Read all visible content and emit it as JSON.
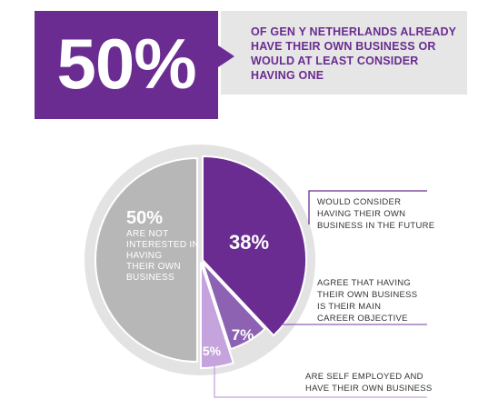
{
  "headline": {
    "big_value": "50%",
    "lines": [
      "OF GEN Y NETHERLANDS ALREADY",
      "HAVE THEIR OWN BUSINESS OR",
      "WOULD AT LEAST CONSIDER",
      "HAVING ONE"
    ]
  },
  "colors": {
    "purple_dark": "#6a2c91",
    "purple_mid": "#8d62b3",
    "purple_light": "#c5a3dc",
    "grey_slice": "#b7b7b7",
    "grey_ring": "#e3e3e3",
    "banner_grey": "#e6e6e6"
  },
  "chart_data": {
    "type": "pie",
    "title": "",
    "slices": [
      {
        "value": 50,
        "label": "50%",
        "description_lines": [
          "ARE NOT",
          "INTERESTED IN",
          "HAVING",
          "THEIR OWN",
          "BUSINESS"
        ]
      },
      {
        "value": 38,
        "label": "38%",
        "description_lines": [
          "WOULD CONSIDER",
          "HAVING THEIR OWN",
          "BUSINESS IN THE FUTURE"
        ]
      },
      {
        "value": 7,
        "label": "7%",
        "description_lines": [
          "AGREE THAT HAVING",
          "THEIR OWN BUSINESS",
          "IS THEIR MAIN",
          "CAREER OBJECTIVE"
        ]
      },
      {
        "value": 5,
        "label": "5%",
        "description_lines": [
          "ARE SELF EMPLOYED AND",
          "HAVE THEIR OWN BUSINESS"
        ]
      }
    ]
  }
}
